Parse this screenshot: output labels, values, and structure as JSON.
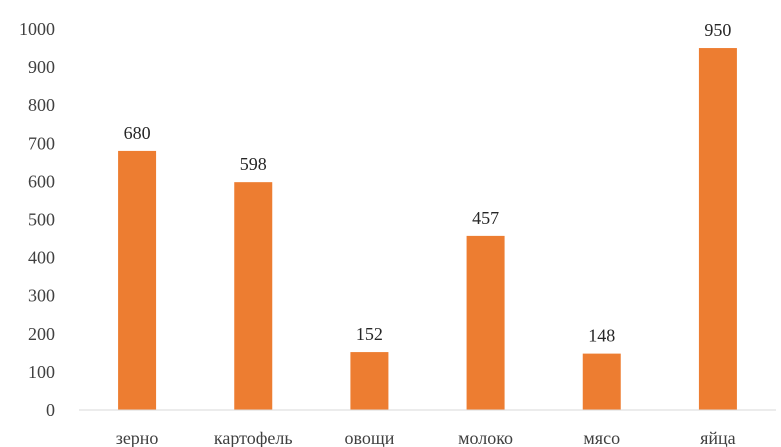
{
  "chart_data": {
    "type": "bar",
    "categories": [
      "зерно",
      "картофель",
      "овощи",
      "молоко",
      "мясо",
      "яйца"
    ],
    "values": [
      680,
      598,
      152,
      457,
      148,
      950
    ],
    "ylim": [
      0,
      1000
    ],
    "yticks": [
      0,
      100,
      200,
      300,
      400,
      500,
      600,
      700,
      800,
      900,
      1000
    ],
    "title": "",
    "xlabel": "",
    "ylabel": "",
    "grid": false,
    "legend": "none",
    "bar_color": "#ED7D31",
    "axis_color": "#D9D9D9"
  }
}
